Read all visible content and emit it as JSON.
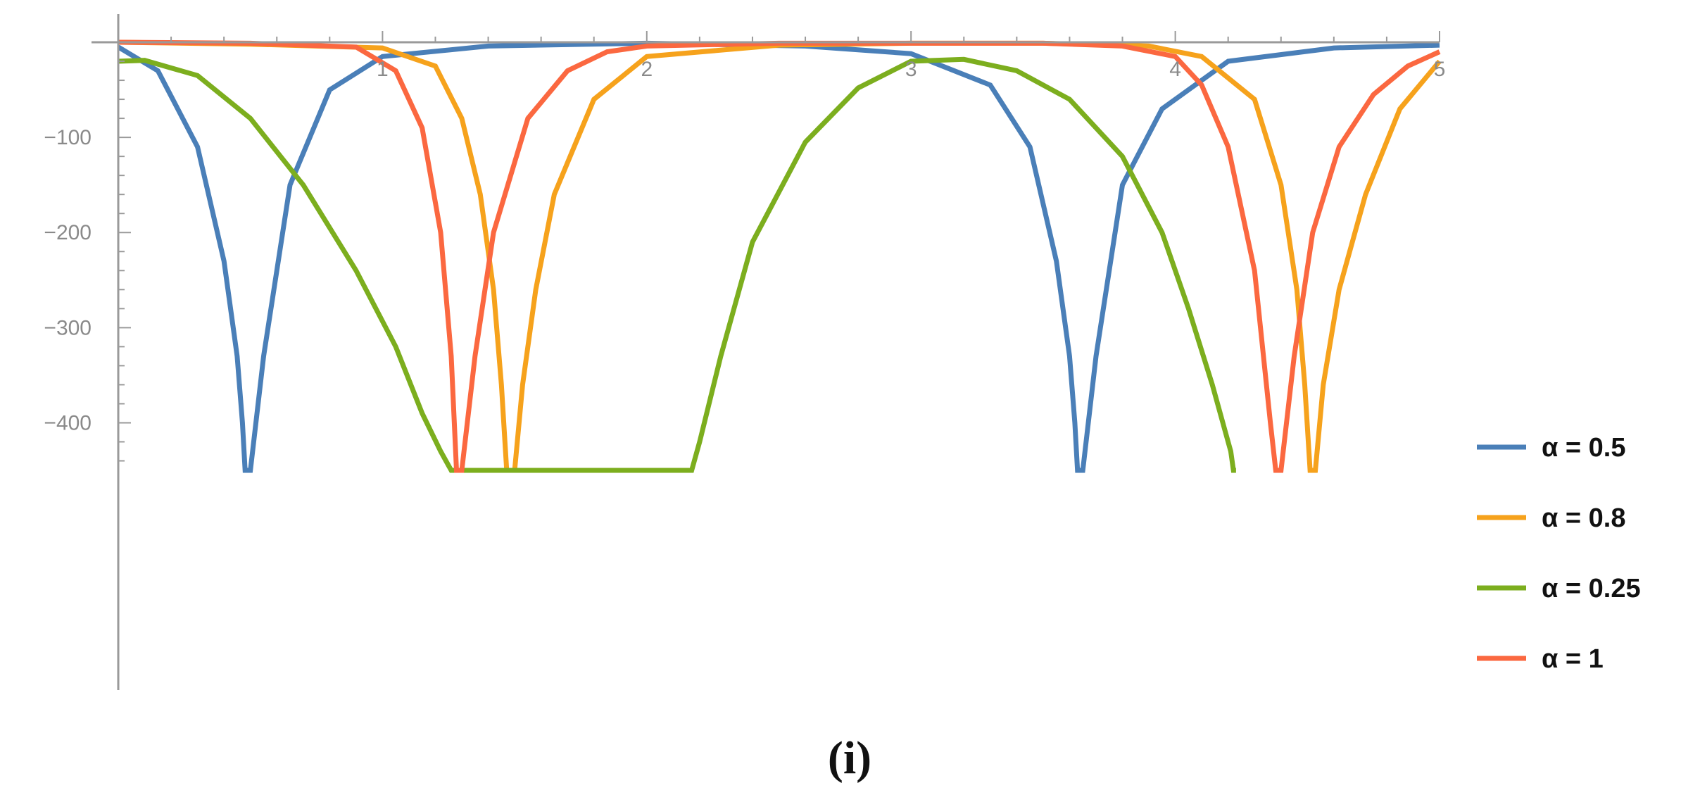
{
  "chart_data": {
    "type": "line",
    "title": "",
    "xlabel": "",
    "ylabel": "",
    "xlim": [
      0,
      5
    ],
    "ylim": [
      -450,
      0
    ],
    "x_ticks": [
      1,
      2,
      3,
      4,
      5
    ],
    "y_ticks": [
      -100,
      -200,
      -300,
      -400
    ],
    "x_tick_labels": [
      "1",
      "2",
      "3",
      "4",
      "5"
    ],
    "y_tick_labels": [
      "−100",
      "−200",
      "−300",
      "−400"
    ],
    "grid": false,
    "legend_position": "right",
    "caption": "(i)",
    "series": [
      {
        "name": "α = 0.5",
        "color": "#4a7fb8",
        "x": [
          0,
          0.15,
          0.3,
          0.4,
          0.45,
          0.47,
          0.48,
          0.5,
          0.55,
          0.65,
          0.8,
          1.0,
          1.4,
          2.0,
          2.6,
          3.0,
          3.3,
          3.45,
          3.55,
          3.6,
          3.62,
          3.63,
          3.65,
          3.7,
          3.8,
          3.95,
          4.2,
          4.6,
          5.0
        ],
        "y": [
          -5,
          -30,
          -110,
          -230,
          -330,
          -400,
          -450,
          -450,
          -330,
          -150,
          -50,
          -15,
          -4,
          -1,
          -4,
          -12,
          -45,
          -110,
          -230,
          -330,
          -400,
          -450,
          -450,
          -330,
          -150,
          -70,
          -20,
          -6,
          -3
        ]
      },
      {
        "name": "α = 0.8",
        "color": "#f6a21c",
        "x": [
          0,
          0.5,
          1.0,
          1.2,
          1.3,
          1.37,
          1.42,
          1.45,
          1.47,
          1.5,
          1.53,
          1.58,
          1.65,
          1.8,
          2.0,
          2.5,
          3.0,
          3.5,
          3.9,
          4.1,
          4.3,
          4.4,
          4.46,
          4.49,
          4.51,
          4.53,
          4.56,
          4.62,
          4.72,
          4.85,
          5.0
        ],
        "y": [
          0,
          -2,
          -6,
          -25,
          -80,
          -160,
          -260,
          -360,
          -450,
          -450,
          -360,
          -260,
          -160,
          -60,
          -15,
          -3,
          -1,
          -1,
          -4,
          -15,
          -60,
          -150,
          -260,
          -360,
          -450,
          -450,
          -360,
          -260,
          -160,
          -70,
          -20
        ]
      },
      {
        "name": "α = 0.25",
        "color": "#7cae1e",
        "x": [
          0,
          0.1,
          0.3,
          0.5,
          0.7,
          0.9,
          1.05,
          1.15,
          1.22,
          1.26,
          1.28,
          1.3,
          2.15,
          2.17,
          2.2,
          2.28,
          2.4,
          2.6,
          2.8,
          3.0,
          3.2,
          3.4,
          3.6,
          3.8,
          3.95,
          4.05,
          4.14,
          4.19,
          4.21,
          4.22,
          4.23
        ],
        "y": [
          -20,
          -19,
          -35,
          -80,
          -150,
          -240,
          -320,
          -390,
          -430,
          -450,
          -450,
          -450,
          -450,
          -450,
          -420,
          -330,
          -210,
          -105,
          -48,
          -20,
          -18,
          -30,
          -60,
          -120,
          -200,
          -280,
          -360,
          -410,
          -430,
          -450,
          -450
        ]
      },
      {
        "name": "α = 1",
        "color": "#fb6840",
        "x": [
          0,
          0.5,
          0.9,
          1.05,
          1.15,
          1.22,
          1.26,
          1.28,
          1.3,
          1.35,
          1.42,
          1.55,
          1.7,
          1.85,
          2.0,
          2.5,
          3.0,
          3.5,
          3.8,
          4.0,
          4.1,
          4.2,
          4.3,
          4.36,
          4.38,
          4.4,
          4.45,
          4.52,
          4.62,
          4.75,
          4.88,
          5.0
        ],
        "y": [
          0,
          -1,
          -5,
          -30,
          -90,
          -200,
          -330,
          -450,
          -450,
          -330,
          -200,
          -80,
          -30,
          -10,
          -4,
          -1,
          -1,
          -1,
          -4,
          -15,
          -45,
          -110,
          -240,
          -400,
          -450,
          -450,
          -330,
          -200,
          -110,
          -55,
          -25,
          -10
        ]
      }
    ]
  }
}
